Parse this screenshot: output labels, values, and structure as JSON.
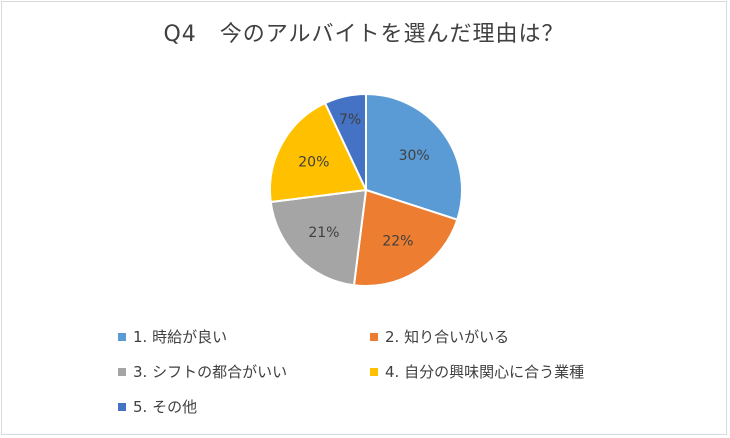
{
  "chart_data": {
    "type": "pie",
    "title": "Q4　今のアルバイトを選んだ理由は？",
    "slices": [
      {
        "label": "1. 時給が良い",
        "value": 30,
        "data_label": "30%",
        "color": "#5b9bd5"
      },
      {
        "label": "2. 知り合いがいる",
        "value": 22,
        "data_label": "22%",
        "color": "#ed7d31"
      },
      {
        "label": "3. シフトの都合がいい",
        "value": 21,
        "data_label": "21%",
        "color": "#a5a5a5"
      },
      {
        "label": "4. 自分の興味関心に合う業種",
        "value": 20,
        "data_label": "20%",
        "color": "#ffc000"
      },
      {
        "label": "5. その他",
        "value": 7,
        "data_label": "7%",
        "color": "#4472c4"
      }
    ],
    "legend_position": "bottom"
  }
}
